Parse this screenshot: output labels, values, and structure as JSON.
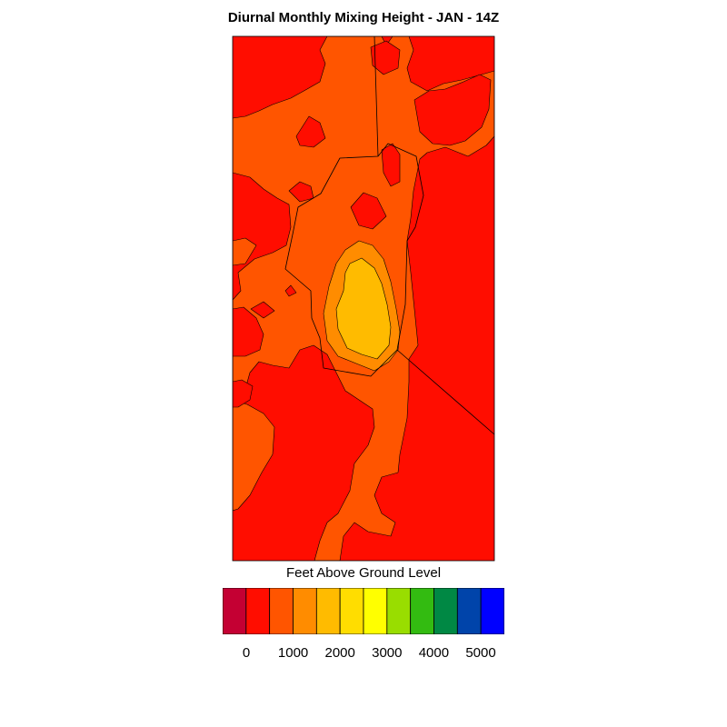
{
  "title": "Diurnal Monthly Mixing Height - JAN - 14Z",
  "map": {
    "field": "mixing-height",
    "unit": "Feet Above Ground Level"
  },
  "colorbar": {
    "label": "Feet Above Ground Level",
    "colors": [
      "#c40033",
      "#ff0d00",
      "#ff5500",
      "#ff8c00",
      "#ffbb00",
      "#ffdd00",
      "#ffff00",
      "#99dd00",
      "#33bb11",
      "#008844",
      "#0044aa",
      "#0000ff"
    ],
    "ticks": [
      "0",
      "1000",
      "2000",
      "3000",
      "4000",
      "5000"
    ]
  }
}
